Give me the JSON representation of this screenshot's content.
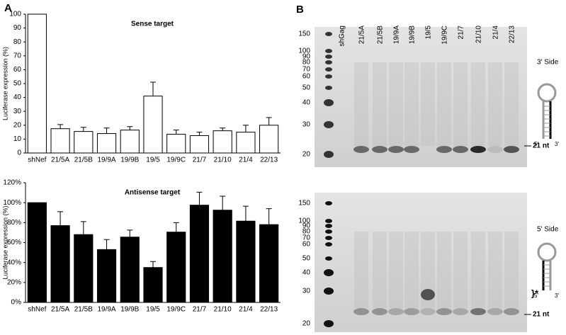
{
  "panel_labels": [
    "A",
    "B"
  ],
  "chart_data": [
    {
      "type": "bar",
      "title": "Sense target",
      "y_label": "Luciferase expression (%)",
      "categories": [
        "shNef",
        "21/5A",
        "21/5B",
        "19/9A",
        "19/9B",
        "19/5",
        "19/9C",
        "21/7",
        "21/10",
        "21/4",
        "22/13"
      ],
      "series": [
        {
          "color": "#ffffff",
          "values": [
            100,
            17.5,
            15.5,
            14,
            16.5,
            41,
            13.5,
            12.5,
            16,
            15,
            20
          ],
          "errors": [
            null,
            3,
            3,
            4,
            2.5,
            10,
            3,
            2.5,
            2,
            5,
            5.5
          ]
        }
      ],
      "ylim": [
        0,
        100
      ],
      "yticks": [
        0,
        10,
        20,
        30,
        40,
        50,
        60,
        70,
        80,
        90,
        100
      ],
      "grid": false
    },
    {
      "type": "bar",
      "title": "Antisense target",
      "y_label": "Luciferase expression (%)",
      "categories": [
        "shNef",
        "21/5A",
        "21/5B",
        "19/9A",
        "19/9B",
        "19/5",
        "19/9C",
        "21/7",
        "21/10",
        "21/4",
        "22/13"
      ],
      "series": [
        {
          "color": "#000000",
          "values": [
            100,
            77,
            68,
            53,
            65.5,
            35,
            70.5,
            97.5,
            92.5,
            81.5,
            78
          ],
          "errors": [
            null,
            14,
            13,
            10,
            7,
            6,
            9.5,
            13,
            14,
            15,
            16
          ]
        }
      ],
      "ylim": [
        0,
        120
      ],
      "yticks": [
        {
          "value": 0,
          "label": "0%"
        },
        {
          "value": 20,
          "label": "20%"
        },
        {
          "value": 40,
          "label": "40%"
        },
        {
          "value": 60,
          "label": "60%"
        },
        {
          "value": 80,
          "label": "80%"
        },
        {
          "value": 100,
          "label": "100%"
        },
        {
          "value": 120,
          "label": "120%"
        }
      ],
      "grid": false
    }
  ],
  "gel": {
    "lanes": [
      "shGag",
      "21/5A",
      "21/5B",
      "19/9A",
      "19/9B",
      "19/5",
      "19/9C",
      "21/7",
      "21/10",
      "21/4",
      "22/13"
    ],
    "top": {
      "size_markers": [
        150,
        100,
        90,
        80,
        70,
        60,
        50,
        40,
        30,
        20
      ],
      "band_label": "21 nt",
      "side_label": "3' Side",
      "ends": [
        "5'",
        "3'"
      ]
    },
    "bottom": {
      "size_markers": [
        150,
        100,
        90,
        80,
        70,
        60,
        50,
        40,
        30,
        20
      ],
      "band_label": "21 nt",
      "side_label": "5' Side",
      "ends": [
        "5'",
        "3'"
      ],
      "note": "}*"
    }
  }
}
